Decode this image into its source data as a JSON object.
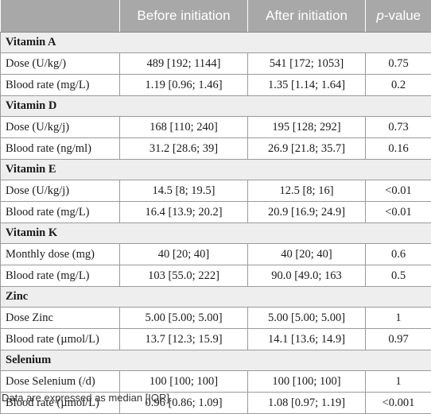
{
  "table": {
    "headers": [
      "",
      "Before initiation",
      "After initiation",
      "p-value"
    ],
    "pvalue_header": {
      "prefix": "p",
      "suffix": "-value"
    },
    "sections": [
      {
        "title": "Vitamin A",
        "rows": [
          {
            "label": "Dose (U/kg/)",
            "before": "489 [192; 1144]",
            "after": "541 [172; 1053]",
            "p": "0.75"
          },
          {
            "label": "Blood rate (mg/L)",
            "before": "1.19 [0.96; 1.46]",
            "after": "1.35 [1.14; 1.64]",
            "p": "0.2"
          }
        ]
      },
      {
        "title": "Vitamin D",
        "rows": [
          {
            "label": "Dose (U/kg/j)",
            "before": "168 [110; 240]",
            "after": "195 [128; 292]",
            "p": "0.73"
          },
          {
            "label": "Blood rate (ng/ml)",
            "before": "31.2 [28.6; 39]",
            "after": "26.9 [21.8; 35.7]",
            "p": "0.16"
          }
        ]
      },
      {
        "title": "Vitamin E",
        "rows": [
          {
            "label": "Dose (U/kg/j)",
            "before": "14.5 [8; 19.5]",
            "after": "12.5 [8; 16]",
            "p": "<0.01"
          },
          {
            "label": "Blood rate (mg/L)",
            "before": "16.4 [13.9; 20.2]",
            "after": "20.9 [16.9; 24.9]",
            "p": "<0.01"
          }
        ]
      },
      {
        "title": "Vitamin K",
        "rows": [
          {
            "label": "Monthly dose (mg)",
            "before": "40 [20; 40]",
            "after": "40 [20; 40]",
            "p": "0.6"
          },
          {
            "label": "Blood rate (mg/L)",
            "before": "103 [55.0; 222]",
            "after": "90.0 [49.0; 163",
            "p": "0.5"
          }
        ]
      },
      {
        "title": "Zinc",
        "rows": [
          {
            "label": "Dose Zinc",
            "before": "5.00 [5.00; 5.00]",
            "after": "5.00 [5.00; 5.00]",
            "p": "1"
          },
          {
            "label": "Blood rate (µmol/L)",
            "before": "13.7 [12.3; 15.9]",
            "after": "14.1 [13.6; 14.9]",
            "p": "0.97"
          }
        ]
      },
      {
        "title": "Selenium",
        "rows": [
          {
            "label": "Dose Selenium (/d)",
            "before": "100 [100; 100]",
            "after": "100 [100; 100]",
            "p": "1"
          },
          {
            "label": "Blood rate (µmol/L)",
            "before": "0.96 [0.86; 1.09]",
            "after": "1.08 [0.97; 1.19]",
            "p": "<0.001"
          }
        ]
      }
    ]
  },
  "footnote": "Data are expressed as median [IQR]."
}
